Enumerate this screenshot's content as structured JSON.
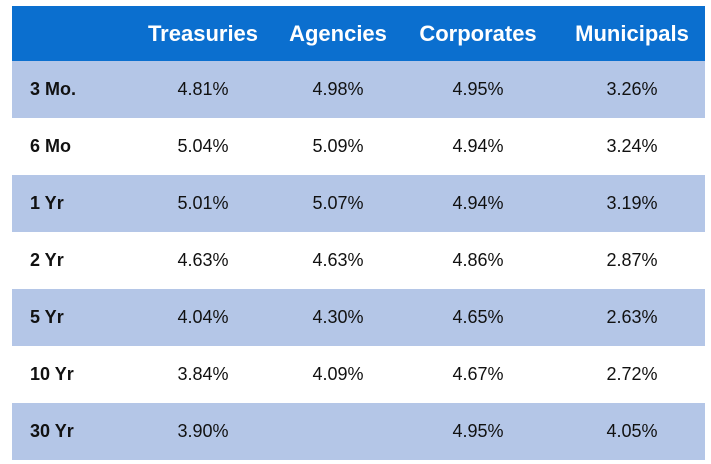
{
  "table": {
    "header": [
      "Treasuries",
      "Agencies",
      "Corporates",
      "Municipals"
    ],
    "rows": [
      {
        "label": "3 Mo.",
        "cells": [
          "4.81%",
          "4.98%",
          "4.95%",
          "3.26%"
        ]
      },
      {
        "label": "6 Mo",
        "cells": [
          "5.04%",
          "5.09%",
          "4.94%",
          "3.24%"
        ]
      },
      {
        "label": "1 Yr",
        "cells": [
          "5.01%",
          "5.07%",
          "4.94%",
          "3.19%"
        ]
      },
      {
        "label": "2 Yr",
        "cells": [
          "4.63%",
          "4.63%",
          "4.86%",
          "2.87%"
        ]
      },
      {
        "label": "5 Yr",
        "cells": [
          "4.04%",
          "4.30%",
          "4.65%",
          "2.63%"
        ]
      },
      {
        "label": "10 Yr",
        "cells": [
          "3.84%",
          "4.09%",
          "4.67%",
          "2.72%"
        ]
      },
      {
        "label": "30 Yr",
        "cells": [
          "3.90%",
          null,
          "4.95%",
          "4.05%"
        ]
      }
    ]
  }
}
